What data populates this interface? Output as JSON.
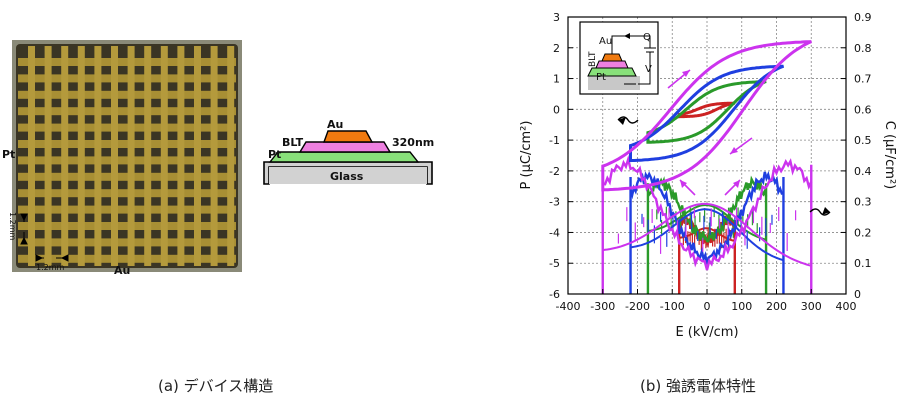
{
  "panel_a": {
    "caption": "(a) デバイス構造",
    "photo_labels": {
      "pt": "Pt",
      "au": "Au",
      "dim_v": "1.2mm",
      "dim_h": "1.2mm"
    },
    "cross_section": {
      "top": "Au",
      "middle": "BLT",
      "bottom": "Pt",
      "substrate": "Glass",
      "thickness": "320nm"
    },
    "colors": {
      "au": "#f07a10",
      "blt": "#ee80e0",
      "pt": "#88e07a",
      "glass": "#d2d2d2",
      "grid_line": "#a88f34",
      "photo_bg": "#3a3524"
    }
  },
  "panel_b": {
    "caption": "(b) 強誘電体特性",
    "inset_labels": {
      "au": "Au",
      "blt": "BLT",
      "pt": "Pt",
      "q": "Q",
      "v": "V"
    }
  },
  "chart_data": {
    "type": "line",
    "xlabel": "E (kV/cm)",
    "ylabel": "P (μC/cm²)",
    "y2label": "C (μF/cm²)",
    "xlim": [
      -400,
      400
    ],
    "ylim": [
      -6,
      3
    ],
    "y2lim": [
      0,
      0.9
    ],
    "xticks": [
      -400,
      -300,
      -200,
      -100,
      0,
      100,
      200,
      300,
      400
    ],
    "yticks": [
      -6,
      -5,
      -4,
      -3,
      -2,
      -1,
      0,
      1,
      2,
      3
    ],
    "y2ticks": [
      0,
      0.1,
      0.2,
      0.3,
      0.4,
      0.5,
      0.6,
      0.7,
      0.8,
      0.9
    ],
    "grid": true,
    "hysteresis_loops": [
      {
        "color": "#cc2222",
        "emax": 80,
        "pmax": 0.2,
        "pr": 0.05
      },
      {
        "color": "#2a9a2a",
        "emax": 170,
        "pmax": 0.9,
        "pr": 0.3
      },
      {
        "color": "#1f3fe0",
        "emax": 220,
        "pmax": 1.4,
        "pr": 0.9
      },
      {
        "color": "#cc33ee",
        "emax": 300,
        "pmax": 2.2,
        "pr": 1.5
      }
    ],
    "cv_curves": [
      {
        "color": "#cc2222",
        "emax": 80,
        "cmin": 0.17,
        "cpeak": 0.24
      },
      {
        "color": "#2a9a2a",
        "emax": 170,
        "cmin": 0.17,
        "cpeak": 0.36
      },
      {
        "color": "#1f3fe0",
        "emax": 220,
        "cmin": 0.1,
        "cpeak": 0.38
      },
      {
        "color": "#cc33ee",
        "emax": 300,
        "cmin": 0.08,
        "cpeak": 0.42
      }
    ]
  }
}
